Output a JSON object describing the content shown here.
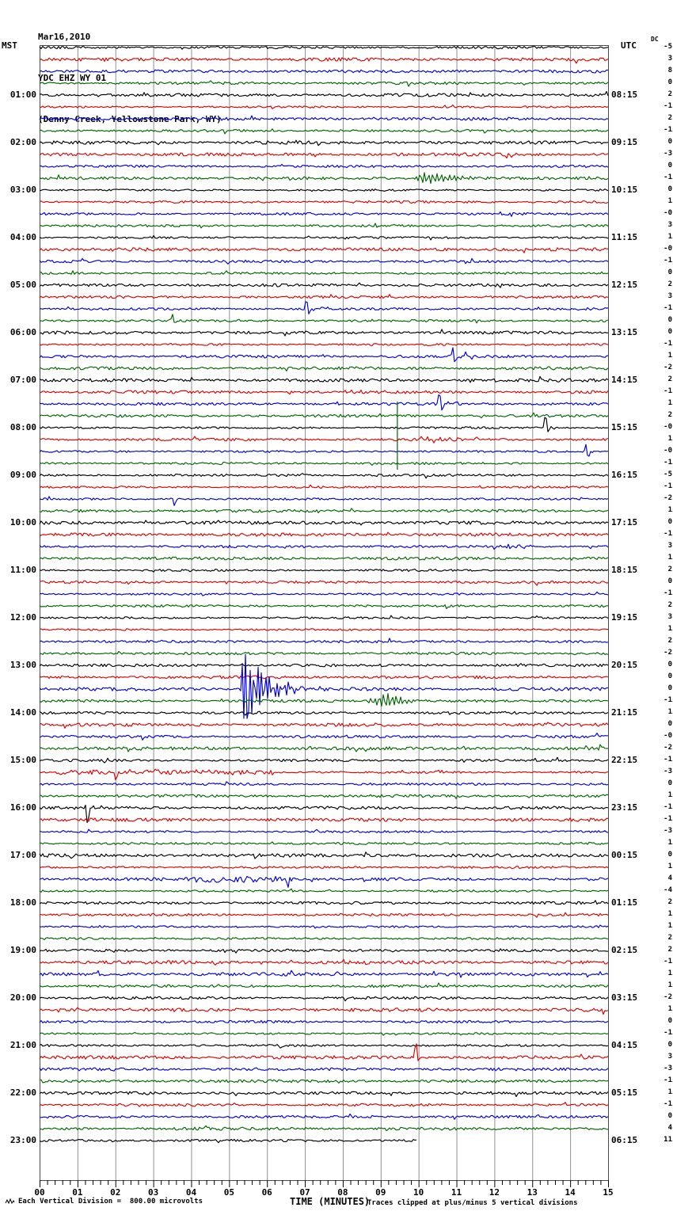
{
  "header": {
    "date": "Mar16,2010",
    "station": "YDC EHZ WY 01",
    "location": "(Denny Creek, Yellowstone Park, WY)"
  },
  "axes": {
    "left_header": "MST",
    "right_header": "UTC",
    "dc_label": "DC",
    "x_label": "TIME (MINUTES)",
    "x_ticks": [
      "00",
      "01",
      "02",
      "03",
      "04",
      "05",
      "06",
      "07",
      "08",
      "09",
      "10",
      "11",
      "12",
      "13",
      "14",
      "15"
    ]
  },
  "footer": {
    "left": "Each Vertical Division =  800.00 microvolts",
    "right": "Traces clipped at plus/minus 5 vertical divisions"
  },
  "chart_data": {
    "type": "line",
    "subtype": "helicorder-seismogram",
    "title": "YDC EHZ WY 01 webicorder, Mar16,2010",
    "x_range_minutes": [
      0,
      15
    ],
    "row_count": 93,
    "minutes_per_row": 15,
    "label_every_rows": 4,
    "first_label_row": 5,
    "color_cycle": [
      "black",
      "red",
      "blue",
      "green"
    ],
    "colors": {
      "black": "#000000",
      "red": "#e00000",
      "blue": "#0000dd",
      "green": "#006600",
      "grid": "#909090",
      "frame": "#4a4a4a"
    },
    "left_labels": [
      "01:00",
      "02:00",
      "03:00",
      "04:00",
      "05:00",
      "06:00",
      "07:00",
      "08:00",
      "09:00",
      "10:00",
      "11:00",
      "12:00",
      "13:00",
      "14:00",
      "15:00",
      "16:00",
      "17:00",
      "18:00",
      "19:00",
      "20:00",
      "21:00",
      "22:00",
      "23:00"
    ],
    "right_labels": [
      "08:15",
      "09:15",
      "10:15",
      "11:15",
      "12:15",
      "13:15",
      "14:15",
      "15:15",
      "16:15",
      "17:15",
      "18:15",
      "19:15",
      "20:15",
      "21:15",
      "22:15",
      "23:15",
      "00:15",
      "01:15",
      "02:15",
      "03:15",
      "04:15",
      "05:15",
      "06:15"
    ],
    "dc_offsets": [
      "-5",
      "3",
      "8",
      "0",
      "2",
      "-1",
      "2",
      "-1",
      "0",
      "-3",
      "0",
      "-1",
      "0",
      "1",
      "-0",
      "3",
      "1",
      "-0",
      "-1",
      "0",
      "2",
      "3",
      "-1",
      "0",
      "0",
      "-1",
      "1",
      "-2",
      "2",
      "-1",
      "1",
      "2",
      "-0",
      "1",
      "-0",
      "-1",
      "-5",
      "-1",
      "-2",
      "1",
      "0",
      "-1",
      "3",
      "1",
      "2",
      "0",
      "-1",
      "2",
      "3",
      "1",
      "2",
      "-2",
      "0",
      "0",
      "0",
      "-1",
      "1",
      "0",
      "-0",
      "-2",
      "-1",
      "-3",
      "0",
      "1",
      "-1",
      "-1",
      "-3",
      "1",
      "0",
      "1",
      "4",
      "-4",
      "2",
      "1",
      "1",
      "2",
      "2",
      "-1",
      "1",
      "1",
      "-2",
      "1",
      "0",
      "-1",
      "0",
      "3",
      "-3",
      "-1",
      "1",
      "-1",
      "0",
      "4",
      "11"
    ],
    "events": [
      {
        "row": 12,
        "type": "burst",
        "start_min": 9.85,
        "peak_min": 10.05,
        "end_min": 12.3,
        "amp": 9
      },
      {
        "row": 23,
        "type": "spike",
        "min": 7.04,
        "up": 16,
        "down": 5,
        "coda_end_min": 8.3,
        "coda_amp": 2.5
      },
      {
        "row": 24,
        "type": "spike",
        "min": 3.5,
        "up": 9,
        "down": 2
      },
      {
        "row": 27,
        "type": "spike",
        "min": 10.9,
        "up": 11,
        "down": 8,
        "coda_end_min": 11.7,
        "coda_amp": 2.5
      },
      {
        "row": 30,
        "type": "fuzz",
        "start_min": 8.0,
        "end_min": 8.7,
        "amp": 2.6
      },
      {
        "row": 31,
        "type": "spike",
        "min": 10.55,
        "up": 19,
        "down": 8,
        "coda_end_min": 11.8,
        "coda_amp": 3.5
      },
      {
        "row": 32,
        "type": "vline",
        "min": 9.44,
        "up": 18,
        "down": 68
      },
      {
        "row": 33,
        "type": "spike",
        "min": 13.35,
        "up": 24,
        "down": 5,
        "coda_end_min": 13.95,
        "coda_amp": 3
      },
      {
        "row": 34,
        "type": "fuzz",
        "start_min": 10.2,
        "end_min": 11.1,
        "amp": 3
      },
      {
        "row": 35,
        "type": "spike",
        "min": 14.42,
        "up": 9,
        "down": 13,
        "coda_end_min": 14.9,
        "coda_amp": 2.5
      },
      {
        "row": 39,
        "type": "spike",
        "min": 3.5,
        "up": 2,
        "down": 9
      },
      {
        "row": 43,
        "type": "fuzz",
        "start_min": 11.9,
        "end_min": 13.0,
        "amp": 2.4
      },
      {
        "row": 55,
        "type": "quake",
        "attack_min": 5.28,
        "min": 5.43,
        "decay_end_min": 7.3,
        "amp": 42,
        "coda_amp": 4
      },
      {
        "row": 56,
        "type": "burst",
        "start_min": 8.55,
        "peak_min": 9.0,
        "end_min": 10.5,
        "amp": 11
      },
      {
        "row": 62,
        "type": "fuzz",
        "start_min": 0.4,
        "end_min": 6.2,
        "amp": 2.8,
        "downtick_min": 2.02,
        "downtick": 9
      },
      {
        "row": 65,
        "type": "spike",
        "min": 1.21,
        "up": 4,
        "down": 24,
        "coda_end_min": 2.1,
        "coda_amp": 3
      },
      {
        "row": 71,
        "type": "fuzz",
        "start_min": 4.0,
        "end_min": 6.9,
        "amp": 2.8,
        "downtick_min": 6.55,
        "downtick": 12
      },
      {
        "row": 86,
        "type": "spike",
        "min": 9.93,
        "up": 24,
        "down": 3
      }
    ],
    "trace_end": {
      "row": 93,
      "minute": 9.95
    }
  }
}
